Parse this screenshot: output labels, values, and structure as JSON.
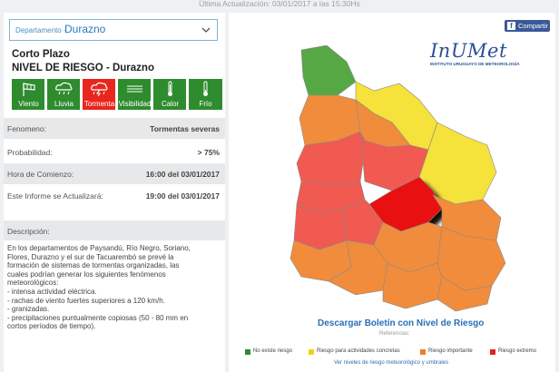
{
  "header": {
    "update_text": "Última Actualización: 03/01/2017 a las 15:30Hs"
  },
  "department_select": {
    "label": "Departamento -",
    "value": "Durazno"
  },
  "forecast": {
    "term": "Corto Plazo",
    "risk_title": "NIVEL DE RIESGO - Durazno",
    "risk_items": [
      {
        "label": "Viento",
        "icon": "wind-icon",
        "color": "#2e8b2e"
      },
      {
        "label": "Lluvia",
        "icon": "rain-icon",
        "color": "#2e8b2e"
      },
      {
        "label": "Tormenta",
        "icon": "storm-icon",
        "color": "#e8261e"
      },
      {
        "label": "Visibilidad",
        "icon": "fog-icon",
        "color": "#2e8b2e"
      },
      {
        "label": "Calor",
        "icon": "thermometer-hot-icon",
        "color": "#2e8b2e"
      },
      {
        "label": "Frío",
        "icon": "thermometer-cold-icon",
        "color": "#2e8b2e"
      }
    ]
  },
  "details": {
    "phenomenon_label": "Fenomeno:",
    "phenomenon_value": "Tormentas severas",
    "probability_label": "Probabilidad:",
    "probability_value": "> 75%",
    "start_label": "Hora de Comienzo:",
    "start_value": "16:00 del 03/01/2017",
    "next_update_label": "Este Informe se Actualizará:",
    "next_update_value": "19:00 del 03/01/2017",
    "description_label": "Descripción:",
    "description_lines": [
      "En los departamentos de Paysandú, Río Negro, Soriano,",
      "Flores, Durazno y el sur de Tacuarembó se prevé la",
      "formación de sistemas de tormentas organizadas, las",
      "cuales podrían generar los siguientes fenómenos",
      "meteorológicos:",
      "- intensa actividad eléctrica.",
      "- rachas de viento fuertes superiores a 120 km/h.",
      "-  granizadas.",
      "- precipitaciones puntualmente copiosas (50 - 80 mm en",
      "cortos períodos de tiempo)."
    ]
  },
  "share": {
    "label": "Compartir"
  },
  "logo": {
    "name": "InUMet",
    "subtitle": "INSTITUTO URUGUAYO DE METEOROLOGÍA"
  },
  "map_colors": {
    "green": "#55a843",
    "yellow": "#f5e23a",
    "orange": "#f08c3c",
    "red_important": "#f05a50",
    "red_extreme": "#e81010"
  },
  "download_link": "Descargar Boletín con Nivel de Riesgo",
  "references_label": "Referencias:",
  "legend": [
    {
      "label": "No existe riesgo",
      "color": "#2e8b2e"
    },
    {
      "label": "Riesgo para actividades concretas",
      "color": "#f2d21a"
    },
    {
      "label": "Riesgo importante",
      "color": "#f07e22"
    },
    {
      "label": "Riesgo extremo",
      "color": "#e2231a"
    }
  ],
  "levels_link": "Ver niveles de riesgo meteorológico y umbrales"
}
